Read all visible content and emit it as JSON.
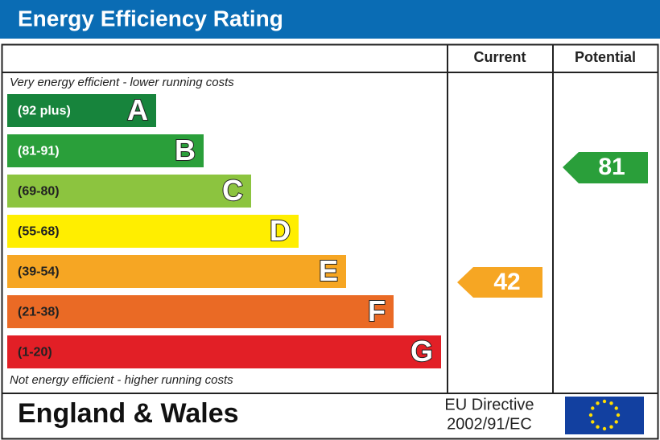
{
  "title": "Energy Efficiency Rating",
  "header": {
    "current": "Current",
    "potential": "Potential"
  },
  "top_note": "Very energy efficient - lower running costs",
  "bottom_note": "Not energy efficient - higher running costs",
  "bands": [
    {
      "range": "(92 plus)",
      "letter": "A",
      "color": "#17843c"
    },
    {
      "range": "(81-91)",
      "letter": "B",
      "color": "#2a9f3a"
    },
    {
      "range": "(69-80)",
      "letter": "C",
      "color": "#8cc43f"
    },
    {
      "range": "(55-68)",
      "letter": "D",
      "color": "#ffee00"
    },
    {
      "range": "(39-54)",
      "letter": "E",
      "color": "#f6a623"
    },
    {
      "range": "(21-38)",
      "letter": "F",
      "color": "#ea6a25"
    },
    {
      "range": "(1-20)",
      "letter": "G",
      "color": "#e21f26"
    }
  ],
  "current": 42,
  "potential": 81,
  "footer": {
    "region": "England & Wales",
    "directive": [
      "EU Directive",
      "2002/91/EC"
    ]
  }
}
